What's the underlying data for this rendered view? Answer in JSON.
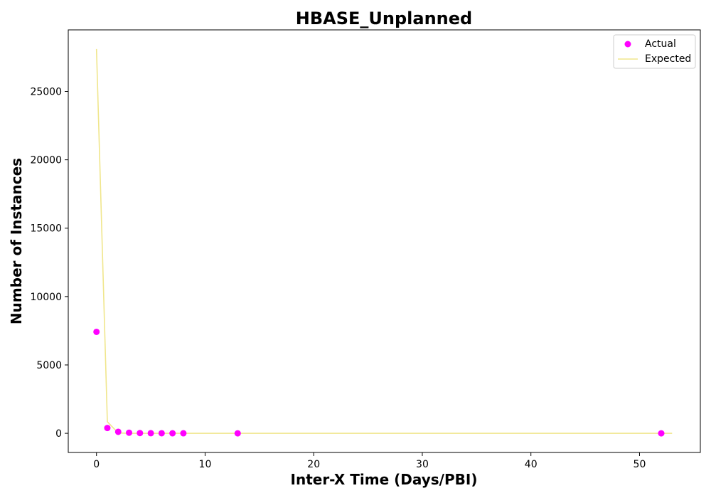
{
  "chart_data": {
    "type": "scatter",
    "title": "HBASE_Unplanned",
    "xlabel": "Inter-X Time (Days/PBI)",
    "ylabel": "Number of Instances",
    "xlim": [
      -2.6,
      55.6
    ],
    "ylim": [
      -1400,
      29500
    ],
    "xticks": [
      0,
      10,
      20,
      30,
      40,
      50
    ],
    "yticks": [
      0,
      5000,
      10000,
      15000,
      20000,
      25000
    ],
    "grid": false,
    "legend_position": "top-right",
    "series": [
      {
        "name": "Actual",
        "kind": "scatter",
        "color": "#ff00ff",
        "x": [
          0,
          1,
          2,
          3,
          4,
          5,
          6,
          7,
          8,
          13,
          52
        ],
        "y": [
          7420,
          390,
          110,
          45,
          20,
          10,
          6,
          4,
          3,
          1,
          1
        ]
      },
      {
        "name": "Expected",
        "kind": "line",
        "color": "#f0e68c",
        "x": [
          0,
          1,
          2,
          3,
          4,
          5,
          6,
          7,
          8,
          9,
          10,
          11,
          12,
          13,
          14,
          15,
          16,
          17,
          18,
          19,
          20,
          21,
          22,
          23,
          24,
          25,
          26,
          27,
          28,
          29,
          30,
          31,
          32,
          33,
          34,
          35,
          36,
          37,
          38,
          39,
          40,
          41,
          42,
          43,
          44,
          45,
          46,
          47,
          48,
          49,
          50,
          51,
          52,
          53
        ],
        "y": [
          28100,
          850,
          26,
          1,
          0,
          0,
          0,
          0,
          0,
          0,
          0,
          0,
          0,
          0,
          0,
          0,
          0,
          0,
          0,
          0,
          0,
          0,
          0,
          0,
          0,
          0,
          0,
          0,
          0,
          0,
          0,
          0,
          0,
          0,
          0,
          0,
          0,
          0,
          0,
          0,
          0,
          0,
          0,
          0,
          0,
          0,
          0,
          0,
          0,
          0,
          0,
          0,
          0,
          0
        ]
      }
    ]
  }
}
